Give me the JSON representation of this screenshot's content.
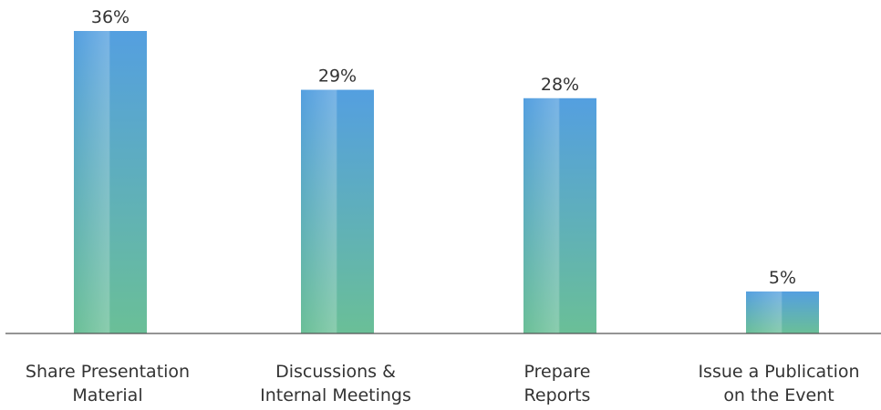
{
  "chart_data": {
    "type": "bar",
    "categories": [
      [
        "Share Presentation",
        "Material"
      ],
      [
        "Discussions &",
        "Internal Meetings"
      ],
      [
        "Prepare",
        "Reports"
      ],
      [
        "Issue a Publication",
        "on the Event"
      ]
    ],
    "values": [
      36,
      29,
      28,
      5
    ],
    "data_labels": [
      "36%",
      "29%",
      "28%",
      "5%"
    ],
    "unit": "%",
    "title": "",
    "xlabel": "",
    "ylabel": "",
    "ylim": [
      0,
      36
    ],
    "grid": false,
    "legend": "none",
    "colors": {
      "bar_top": "#549fe0",
      "bar_bottom": "#6abf97",
      "baseline": "#555555",
      "text": "#333333"
    }
  }
}
